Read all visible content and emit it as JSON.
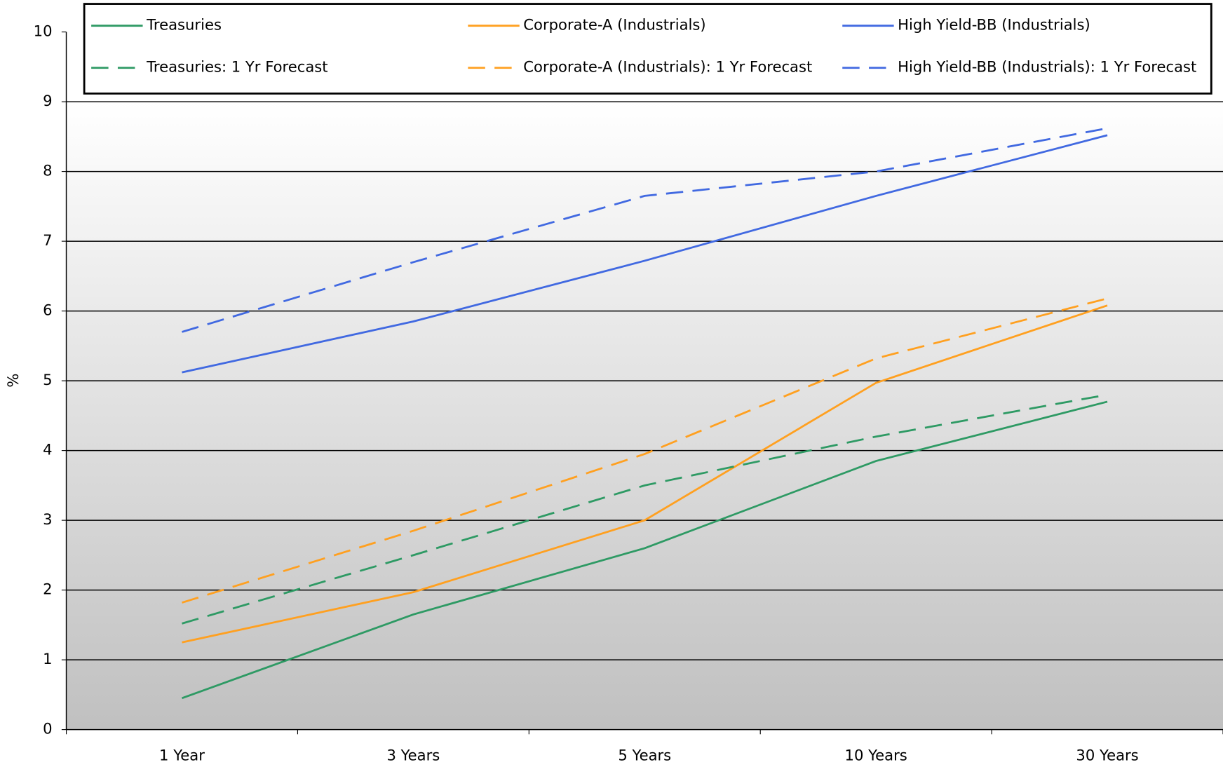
{
  "chart_data": {
    "type": "line",
    "y_label": "%",
    "categories": [
      "1 Year",
      "3 Years",
      "5 Years",
      "10 Years",
      "30 Years"
    ],
    "ylim": [
      0,
      10
    ],
    "yticks": [
      0,
      1,
      2,
      3,
      4,
      5,
      6,
      7,
      8,
      9,
      10
    ],
    "grid": true,
    "series": [
      {
        "name": "Treasuries",
        "color": "#2e9a64",
        "dashed": false,
        "values": [
          0.45,
          1.65,
          2.6,
          3.85,
          4.7
        ]
      },
      {
        "name": "Corporate-A (Industrials)",
        "color": "#ffa020",
        "dashed": false,
        "values": [
          1.25,
          1.97,
          3.0,
          4.97,
          6.08
        ]
      },
      {
        "name": "High Yield-BB (Industrials)",
        "color": "#4169e1",
        "dashed": false,
        "values": [
          5.12,
          5.85,
          6.72,
          7.65,
          8.52
        ]
      },
      {
        "name": "Treasuries: 1 Yr Forecast",
        "color": "#2e9a64",
        "dashed": true,
        "values": [
          1.52,
          2.5,
          3.5,
          4.2,
          4.8
        ]
      },
      {
        "name": "Corporate-A (Industrials): 1 Yr Forecast",
        "color": "#ffa020",
        "dashed": true,
        "values": [
          1.82,
          2.85,
          3.95,
          5.32,
          6.18
        ]
      },
      {
        "name": "High Yield-BB (Industrials): 1 Yr Forecast",
        "color": "#4169e1",
        "dashed": true,
        "values": [
          5.7,
          6.7,
          7.65,
          8.0,
          8.62
        ]
      }
    ]
  }
}
